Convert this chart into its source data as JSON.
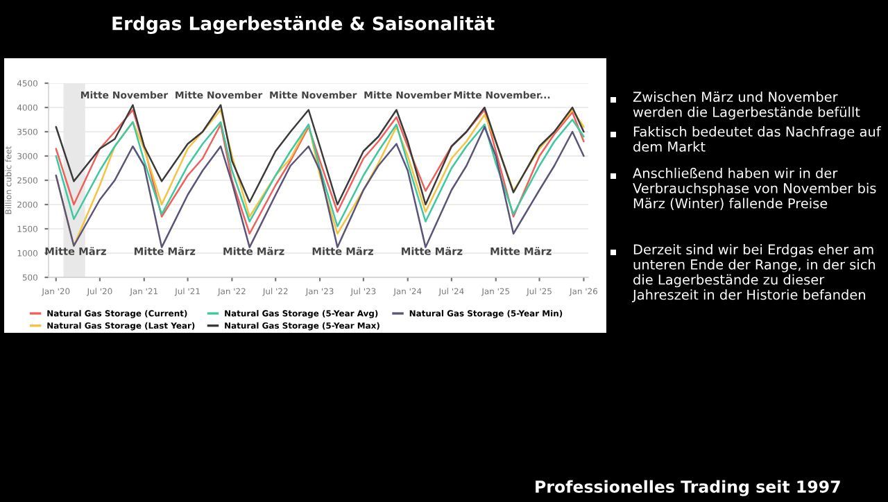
{
  "chart_data": {
    "type": "line",
    "title": "Erdgas Lagerbestände & Saisonalität",
    "ylabel": "Billion cubic feet",
    "x": [
      "2020-01-01",
      "2020-03-15",
      "2020-07-01",
      "2020-09-01",
      "2020-11-15",
      "2021-01-01",
      "2021-03-15",
      "2021-07-01",
      "2021-09-01",
      "2021-11-15",
      "2022-01-01",
      "2022-03-15",
      "2022-07-01",
      "2022-09-01",
      "2022-11-15",
      "2023-01-01",
      "2023-03-15",
      "2023-07-01",
      "2023-09-01",
      "2023-11-15",
      "2024-01-01",
      "2024-03-15",
      "2024-07-01",
      "2024-09-01",
      "2024-11-15",
      "2025-01-01",
      "2025-03-15",
      "2025-07-01",
      "2025-09-01",
      "2025-11-15",
      "2026-01-01"
    ],
    "series": [
      {
        "name": "Natural Gas Storage (Current)",
        "color": "#f0605a",
        "values": [
          3150,
          2000,
          3150,
          3500,
          3950,
          3200,
          1750,
          2600,
          2950,
          3650,
          2500,
          1400,
          2400,
          2900,
          3600,
          2900,
          1850,
          2950,
          3300,
          3800,
          3200,
          2280,
          3200,
          3500,
          3950,
          3100,
          1750,
          3000,
          3450,
          3900,
          3300
        ]
      },
      {
        "name": "Natural Gas Storage (Last Year)",
        "color": "#f5c242",
        "values": [
          2600,
          1150,
          2400,
          3200,
          3700,
          3150,
          2000,
          3150,
          3500,
          3950,
          3000,
          1750,
          2600,
          2950,
          3650,
          2600,
          1400,
          2300,
          2850,
          3600,
          3000,
          1850,
          2950,
          3300,
          3850,
          3300,
          2280,
          3150,
          3500,
          3950,
          3600
        ]
      },
      {
        "name": "Natural Gas Storage (5-Year Avg)",
        "color": "#3cc8a0",
        "values": [
          3000,
          1700,
          2700,
          3200,
          3700,
          2900,
          1800,
          2800,
          3250,
          3700,
          2700,
          1650,
          2600,
          3100,
          3650,
          2750,
          1550,
          2600,
          3100,
          3650,
          2850,
          1650,
          2750,
          3200,
          3650,
          2850,
          1800,
          2800,
          3300,
          3750,
          3400
        ]
      },
      {
        "name": "Natural Gas Storage (5-Year Max)",
        "color": "#3a3a3a",
        "values": [
          3600,
          2480,
          3150,
          3350,
          4050,
          3200,
          2480,
          3250,
          3500,
          4050,
          2900,
          2050,
          3100,
          3500,
          3950,
          3200,
          2000,
          3100,
          3400,
          3950,
          3300,
          2000,
          3200,
          3500,
          4000,
          3300,
          2250,
          3200,
          3500,
          4000,
          3500
        ]
      },
      {
        "name": "Natural Gas Storage (5-Year Min)",
        "color": "#5a5478",
        "values": [
          2600,
          1150,
          2100,
          2500,
          3200,
          2800,
          1120,
          2200,
          2700,
          3200,
          2450,
          1120,
          2200,
          2800,
          3200,
          2700,
          1120,
          2300,
          2800,
          3250,
          2700,
          1120,
          2300,
          2800,
          3600,
          3000,
          1400,
          2300,
          2800,
          3500,
          3000
        ]
      }
    ],
    "xlim": [
      "2019-12-01",
      "2026-01-20"
    ],
    "xticks": [
      {
        "value": "2020-01-01",
        "label": "Jan '20"
      },
      {
        "value": "2020-07-01",
        "label": "Jul '20"
      },
      {
        "value": "2021-01-01",
        "label": "Jan '21"
      },
      {
        "value": "2021-07-01",
        "label": "Jul '21"
      },
      {
        "value": "2022-01-01",
        "label": "Jan '22"
      },
      {
        "value": "2022-07-01",
        "label": "Jul '22"
      },
      {
        "value": "2023-01-01",
        "label": "Jan '23"
      },
      {
        "value": "2023-07-01",
        "label": "Jul '23"
      },
      {
        "value": "2024-01-01",
        "label": "Jan '24"
      },
      {
        "value": "2024-07-01",
        "label": "Jul '24"
      },
      {
        "value": "2025-01-01",
        "label": "Jan '25"
      },
      {
        "value": "2025-07-01",
        "label": "Jul '25"
      },
      {
        "value": "2026-01-01",
        "label": "Jan '26"
      }
    ],
    "ylim": [
      500,
      4500
    ],
    "yticks": [
      500,
      1000,
      1500,
      2000,
      2500,
      3000,
      3500,
      4000,
      4500
    ],
    "grid": "y",
    "legend": "bottom",
    "marker": "none",
    "line_style": "solid",
    "bands": [
      {
        "axis": "x",
        "from": "2020-02-01",
        "to": "2020-05-01",
        "color": "#e8e8e8"
      }
    ],
    "annotations": [
      "Mitte November",
      "Mitte November",
      "Mitte November",
      "Mitte November",
      "Mitte November...",
      "Mitte März",
      "Mitte März",
      "Mitte März",
      "Mitte März",
      "Mitte März",
      "Mitte März",
      "Zwischen März und November werden die Lagerbestände befüllt",
      "Faktisch bedeutet das Nachfrage auf dem Markt",
      "Anschließend haben wir in der Verbrauchsphase von November bis März (Winter) fallende Preise",
      "Derzeit sind wir bei Erdgas eher am unteren Ende der Range, in der sich die Lagerbestände zu dieser Jahreszeit in der Historie befanden",
      "Professionelles Trading seit 1997"
    ]
  }
}
